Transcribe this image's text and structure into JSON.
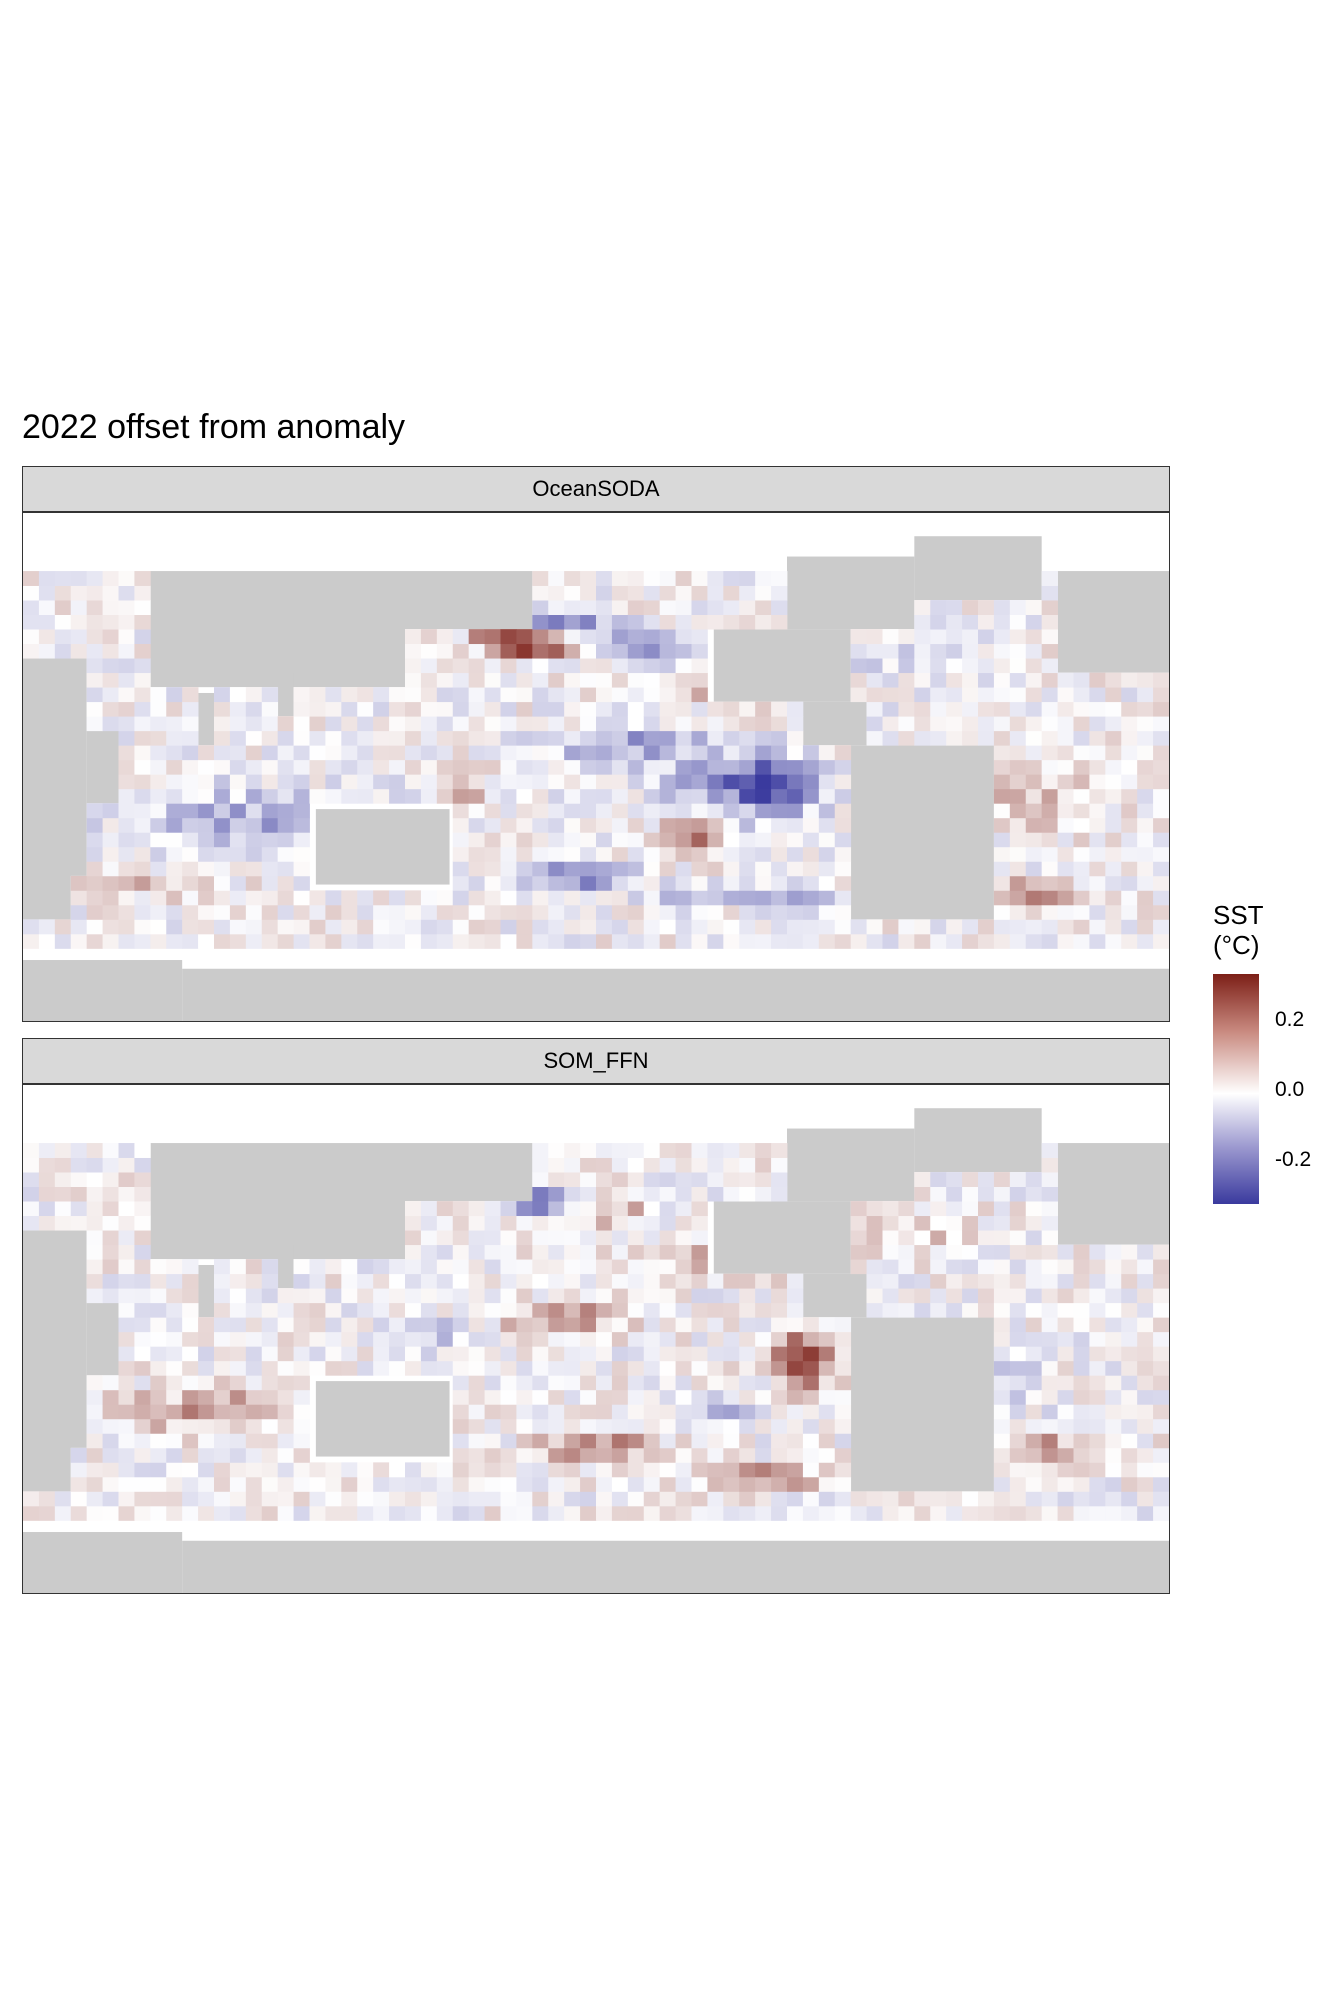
{
  "title": "2022 offset from anomaly",
  "colors": {
    "land": "#cbcbcb",
    "ocean_missing": "#ffffff",
    "low": "#3a3a9e",
    "mid": "#ffffff",
    "high": "#7c1f17",
    "strip": "#d9d9d9"
  },
  "legend": {
    "title_line1": "SST",
    "title_line2": "(°C)",
    "ticks": [
      "0.2",
      "0.0",
      "-0.2"
    ],
    "tick_values": [
      0.2,
      0.0,
      -0.2
    ],
    "range": [
      -0.3,
      0.33
    ]
  },
  "chart_data": [
    {
      "type": "heatmap",
      "panel": "OceanSODA",
      "title": "",
      "xlabel": "",
      "ylabel": "",
      "x": "longitude (20E to 380E), 10-degree cells",
      "y": "latitude (60S to 70N), 5-degree cells",
      "highlights": [
        {
          "region": "North Pacific ~45N 160E-200E",
          "value": 0.28
        },
        {
          "region": "North Pacific ~50N 170E-200E",
          "value": -0.2
        },
        {
          "region": "Equatorial Pacific 250E-270E",
          "value": -0.27
        },
        {
          "region": "South Pacific ~25S 250E",
          "value": 0.22
        },
        {
          "region": "Southern Ocean ~40S 190E-210E",
          "value": -0.24
        },
        {
          "region": "Southern Ocean ~45S 330E",
          "value": 0.18
        }
      ]
    },
    {
      "type": "heatmap",
      "panel": "SOM_FFN",
      "title": "",
      "xlabel": "",
      "ylabel": "",
      "x": "longitude (20E to 380E), 10-degree cells",
      "y": "latitude (60S to 70N), 5-degree cells",
      "highlights": [
        {
          "region": "North Pacific ~50N 160E-200E",
          "value": -0.27
        },
        {
          "region": "Equatorial Pacific 260E-280E",
          "value": 0.3
        },
        {
          "region": "Western Pacific ~10N 160E-200E",
          "value": 0.16
        },
        {
          "region": "South Pacific ~35S 190E-220E",
          "value": 0.24
        },
        {
          "region": "Indian Ocean ~20S 60E-110E",
          "value": 0.14
        },
        {
          "region": "South Pacific ~20S 240E",
          "value": -0.2
        }
      ]
    }
  ],
  "panels": [
    {
      "strip": "OceanSODA"
    },
    {
      "strip": "SOM_FFN"
    }
  ]
}
